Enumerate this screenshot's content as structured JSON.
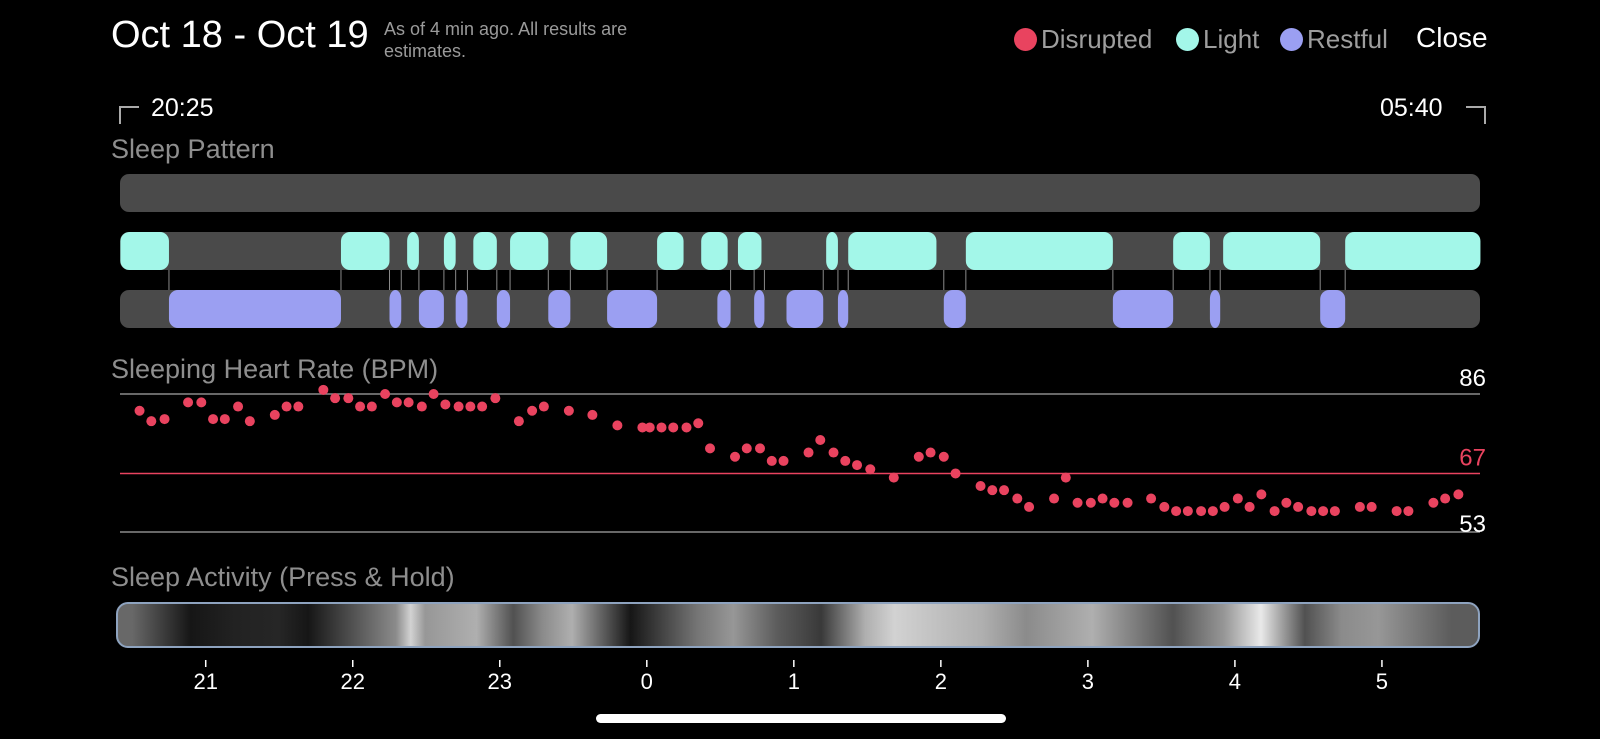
{
  "header": {
    "title": "Oct 18 - Oct 19",
    "subtitle": "As of 4 min ago. All results are estimates.",
    "close_label": "Close"
  },
  "legend": [
    {
      "label": "Disrupted",
      "color": "#e9435f"
    },
    {
      "label": "Light",
      "color": "#a3f7e9"
    },
    {
      "label": "Restful",
      "color": "#9b9ff2"
    }
  ],
  "time_range": {
    "start": "20:25",
    "end": "05:40"
  },
  "sections": {
    "sleep_pattern": "Sleep Pattern",
    "heart_rate": "Sleeping Heart Rate (BPM)",
    "activity": "Sleep Activity (Press & Hold)"
  },
  "colors": {
    "track": "#4a4a4a",
    "disrupted": "#e9435f",
    "light": "#a3f7e9",
    "restful": "#9b9ff2",
    "avg_line": "#e9435f",
    "grid_line": "#8a8a8a"
  },
  "chart_data": [
    {
      "type": "timeline",
      "title": "Sleep Pattern",
      "x_unit": "hours (24h clock, values past 24 are next day)",
      "xlim": [
        20.417,
        29.667
      ],
      "series": [
        {
          "name": "Disrupted",
          "segments": []
        },
        {
          "name": "Light",
          "segments": [
            [
              20.42,
              20.75
            ],
            [
              21.92,
              22.25
            ],
            [
              22.37,
              22.45
            ],
            [
              22.62,
              22.7
            ],
            [
              22.82,
              22.98
            ],
            [
              23.07,
              23.33
            ],
            [
              23.48,
              23.73
            ],
            [
              24.07,
              24.25
            ],
            [
              24.37,
              24.55
            ],
            [
              24.62,
              24.78
            ],
            [
              25.22,
              25.3
            ],
            [
              25.37,
              25.97
            ],
            [
              26.17,
              27.17
            ],
            [
              27.58,
              27.83
            ],
            [
              27.92,
              28.58
            ],
            [
              28.75,
              29.67
            ]
          ]
        },
        {
          "name": "Restful",
          "segments": [
            [
              20.75,
              21.92
            ],
            [
              22.25,
              22.33
            ],
            [
              22.45,
              22.62
            ],
            [
              22.7,
              22.78
            ],
            [
              22.98,
              23.07
            ],
            [
              23.33,
              23.48
            ],
            [
              23.73,
              24.07
            ],
            [
              24.48,
              24.57
            ],
            [
              24.73,
              24.8
            ],
            [
              24.95,
              25.2
            ],
            [
              25.3,
              25.37
            ],
            [
              26.02,
              26.17
            ],
            [
              27.17,
              27.58
            ],
            [
              27.83,
              27.9
            ],
            [
              28.58,
              28.75
            ]
          ]
        }
      ]
    },
    {
      "type": "scatter",
      "title": "Sleeping Heart Rate (BPM)",
      "ylim": [
        53,
        86
      ],
      "reference_lines": [
        {
          "label": "86",
          "value": 86
        },
        {
          "label": "67",
          "value": 67
        },
        {
          "label": "53",
          "value": 53
        }
      ],
      "x": [
        20.55,
        20.63,
        20.72,
        20.88,
        20.97,
        21.05,
        21.13,
        21.22,
        21.3,
        21.47,
        21.55,
        21.63,
        21.8,
        21.88,
        21.97,
        22.05,
        22.13,
        22.22,
        22.3,
        22.38,
        22.47,
        22.55,
        22.63,
        22.72,
        22.8,
        22.88,
        22.97,
        23.13,
        23.22,
        23.3,
        23.47,
        23.63,
        23.8,
        23.97,
        24.02,
        24.1,
        24.18,
        24.27,
        24.35,
        24.43,
        24.6,
        24.68,
        24.77,
        24.85,
        24.93,
        25.1,
        25.18,
        25.27,
        25.35,
        25.43,
        25.52,
        25.68,
        25.85,
        25.93,
        26.02,
        26.1,
        26.27,
        26.35,
        26.43,
        26.52,
        26.6,
        26.77,
        26.85,
        26.93,
        27.02,
        27.1,
        27.18,
        27.27,
        27.43,
        27.52,
        27.6,
        27.68,
        27.77,
        27.85,
        27.93,
        28.02,
        28.1,
        28.18,
        28.27,
        28.35,
        28.43,
        28.52,
        28.6,
        28.68,
        28.85,
        28.93,
        29.1,
        29.18,
        29.35,
        29.43,
        29.52
      ],
      "values": [
        82,
        79.5,
        80,
        84,
        84,
        80,
        80,
        83,
        79.5,
        81,
        83,
        83,
        87,
        85,
        85,
        83,
        83,
        86,
        84,
        84,
        83,
        86,
        83.5,
        83,
        83,
        83,
        85,
        79.5,
        82,
        83,
        82,
        81,
        78.5,
        78,
        78,
        78,
        78,
        78,
        79,
        73,
        71,
        73,
        73,
        70,
        70,
        72,
        75,
        72,
        70,
        69,
        68,
        66,
        71,
        72,
        71,
        67,
        64,
        63,
        63,
        61,
        59,
        61,
        66,
        60,
        60,
        61,
        60,
        60,
        61,
        59,
        58,
        58,
        58,
        58,
        59,
        61,
        59,
        62,
        58,
        60,
        59,
        58,
        58,
        58,
        59,
        59,
        58,
        58,
        60,
        61,
        62
      ]
    },
    {
      "type": "heatmap",
      "title": "Sleep Activity (Press & Hold)",
      "x": [
        20.5,
        20.9,
        21.2,
        21.5,
        21.7,
        22.3,
        22.4,
        22.5,
        22.85,
        23.1,
        23.3,
        23.5,
        23.9,
        24.35,
        24.6,
        24.9,
        25.2,
        25.5,
        25.7,
        25.9,
        26.3,
        26.6,
        27.05,
        27.6,
        27.95,
        28.2,
        28.5,
        28.75,
        29.0,
        29.5
      ],
      "values": [
        0.4,
        0.05,
        0.1,
        0.12,
        0.05,
        0.55,
        0.85,
        0.6,
        0.7,
        0.3,
        0.55,
        0.7,
        0.05,
        0.45,
        0.6,
        0.35,
        0.2,
        0.7,
        0.85,
        0.8,
        0.7,
        0.55,
        0.7,
        0.3,
        0.6,
        0.95,
        0.3,
        0.55,
        0.6,
        0.35
      ]
    },
    {
      "type": "axis",
      "tick_values": [
        21,
        22,
        23,
        24,
        25,
        26,
        27,
        28,
        29
      ],
      "tick_labels": [
        "21",
        "22",
        "23",
        "0",
        "1",
        "2",
        "3",
        "4",
        "5"
      ]
    }
  ]
}
